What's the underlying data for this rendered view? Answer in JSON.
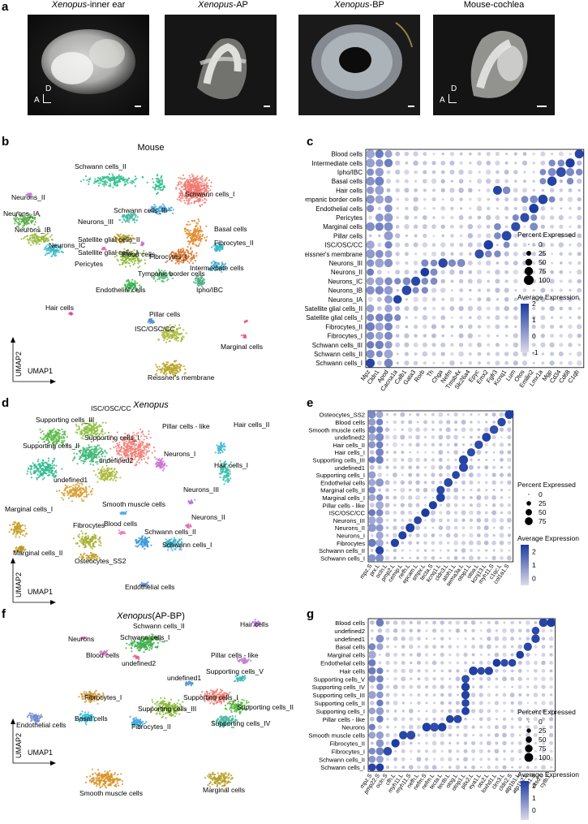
{
  "panels": {
    "a": "a",
    "b": "b",
    "c": "c",
    "d": "d",
    "e": "e",
    "f": "f",
    "g": "g"
  },
  "micrographs": [
    {
      "title_italic": "Xenopus",
      "title_rest": "-inner ear",
      "axis_d": "D",
      "axis_a": "A"
    },
    {
      "title_italic": "Xenopus",
      "title_rest": "-AP"
    },
    {
      "title_italic": "Xenopus",
      "title_rest": "-BP"
    },
    {
      "title_italic": "",
      "title_rest": "Mouse-cochlea",
      "axis_d": "D",
      "axis_a": "A"
    }
  ],
  "umap_axes": {
    "x": "UMAP1",
    "y": "UMAP2"
  },
  "umap_b": {
    "title": "Mouse",
    "clusters": [
      {
        "name": "Schwann cells_I",
        "color": "#f07a72"
      },
      {
        "name": "Schwann cells_II",
        "color": "#2bbf8a"
      },
      {
        "name": "Schwann cells_III",
        "color": "#4aa8d8"
      },
      {
        "name": "Neurons_II",
        "color": "#c77dd8"
      },
      {
        "name": "Neurons_III",
        "color": "#3fb9a0"
      },
      {
        "name": "Satellite glial cells_II",
        "color": "#b8a030"
      },
      {
        "name": "Satellite glial cells_I",
        "color": "#8cb830"
      },
      {
        "name": "Fibrocytes_II",
        "color": "#e08a2a"
      },
      {
        "name": "Fibrocytes_I",
        "color": "#d9742a"
      },
      {
        "name": "Basal cells",
        "color": "#36b8c8"
      },
      {
        "name": "Neurons_IA",
        "color": "#5ab04a"
      },
      {
        "name": "Neurons_IB",
        "color": "#9ab83a"
      },
      {
        "name": "Neurons_IC",
        "color": "#3ab8c8"
      },
      {
        "name": "Blood cells",
        "color": "#d070c8"
      },
      {
        "name": "Pericytes",
        "color": "#e070a8"
      },
      {
        "name": "Intermediate cells",
        "color": "#42b0d0"
      },
      {
        "name": "Tympanic border cells",
        "color": "#60c080"
      },
      {
        "name": "Endothelial cells",
        "color": "#3ab050"
      },
      {
        "name": "Ipho/IBC",
        "color": "#48b080"
      },
      {
        "name": "Hair cells",
        "color": "#e04a90"
      },
      {
        "name": "Pillar cells",
        "color": "#5a90d8"
      },
      {
        "name": "ISC/OSC/CC",
        "color": "#a8b838"
      },
      {
        "name": "Marginal cells",
        "color": "#e85878"
      },
      {
        "name": "Reissner's membrane",
        "color": "#b8a428"
      }
    ]
  },
  "umap_d": {
    "title_italic": "Xenopus",
    "clusters": [
      {
        "name": "ISC/OSC/CC",
        "color": "#8cc040"
      },
      {
        "name": "Supporting cells_III",
        "color": "#5ab848"
      },
      {
        "name": "Pillar cells - like",
        "color": "#f08078"
      },
      {
        "name": "Supporting cells_I",
        "color": "#40b878"
      },
      {
        "name": "Supporting cells_II",
        "color": "#30b890"
      },
      {
        "name": "Neurons_I",
        "color": "#d070d8"
      },
      {
        "name": "undefined2",
        "color": "#a8b838"
      },
      {
        "name": "Hair cells_II",
        "color": "#40b8d8"
      },
      {
        "name": "Hair cells_I",
        "color": "#38c0a8"
      },
      {
        "name": "undefined1",
        "color": "#d8a030"
      },
      {
        "name": "Neurons_III",
        "color": "#b878d8"
      },
      {
        "name": "Smooth muscle cells",
        "color": "#50a8e0"
      },
      {
        "name": "Neurons_II",
        "color": "#e070b0"
      },
      {
        "name": "Marginal cells_I",
        "color": "#c8a028"
      },
      {
        "name": "Marginal cells_II",
        "color": "#b89820"
      },
      {
        "name": "Fibrocytes",
        "color": "#a8b030"
      },
      {
        "name": "Blood cells",
        "color": "#e878c0"
      },
      {
        "name": "Schwann cells_II",
        "color": "#3898d8"
      },
      {
        "name": "Schwann cells_I",
        "color": "#40b0c8"
      },
      {
        "name": "Osteocytes_SS2",
        "color": "#c0a030"
      },
      {
        "name": "Endothelial cells",
        "color": "#5a88d0"
      }
    ]
  },
  "umap_f": {
    "title_italic": "Xenopus",
    "title_rest": "(AP-BP)",
    "clusters": [
      {
        "name": "Hair cells",
        "color": "#b878d8"
      },
      {
        "name": "Schwann cells_II",
        "color": "#40b050"
      },
      {
        "name": "Schwann cells_I",
        "color": "#50b048"
      },
      {
        "name": "Neurons",
        "color": "#e070b0"
      },
      {
        "name": "Blood cells",
        "color": "#d870c8"
      },
      {
        "name": "undefined2",
        "color": "#e06898"
      },
      {
        "name": "Pillar cells - like",
        "color": "#c080d8"
      },
      {
        "name": "Supporting cells_V",
        "color": "#38b8b8"
      },
      {
        "name": "undefined1",
        "color": "#5a98d8"
      },
      {
        "name": "Fibrocytes_I",
        "color": "#d09838"
      },
      {
        "name": "Supporting cells_I",
        "color": "#f07a72"
      },
      {
        "name": "Endothelial cells",
        "color": "#6a88d0"
      },
      {
        "name": "Supporting cells_III",
        "color": "#88b838"
      },
      {
        "name": "Supporting cells_II",
        "color": "#58b840"
      },
      {
        "name": "Basal cells",
        "color": "#38b8d8"
      },
      {
        "name": "Fibrocytes_II",
        "color": "#40a8e0"
      },
      {
        "name": "Supporting cells_IV",
        "color": "#48b8a0"
      },
      {
        "name": "Smooth muscle cells",
        "color": "#d8942a"
      },
      {
        "name": "Marginal cells",
        "color": "#b8a028"
      }
    ]
  },
  "chart_data": [
    {
      "type": "dot",
      "panel": "c",
      "rows": [
        "Blood cells",
        "Intermediate cells",
        "Ipho/IBC",
        "Basal cells",
        "Hair cells",
        "Tympanic border cells",
        "Endothelial cells",
        "Pericytes",
        "Marginal cells",
        "Pillar cells",
        "ISC/OSC/CC",
        "Reissner's membrane",
        "Neurons_III",
        "Neurons_II",
        "Neurons_IC",
        "Neurons_IB",
        "Neurons_IA",
        "Satellite glial cells_II",
        "Satellite glial cells_I",
        "Fibrocytes_II",
        "Fibrocytes_I",
        "Schwann cells_III",
        "Schwann cells_II",
        "Schwann cells_I"
      ],
      "genes": [
        "Mpz",
        "Cldn1",
        "Apod",
        "Cacna1a",
        "Calb1",
        "Gata3",
        "Rorb",
        "Th",
        "Chga",
        "Nefm",
        "Tmsb4x",
        "Slc26a4",
        "Epyc",
        "Emx2",
        "Fgfr3",
        "Kcnq1",
        "Lum",
        "Otos",
        "Emilin2",
        "Lmx1a",
        "Mgp",
        "Cd34",
        "Cd68",
        "C1qb"
      ],
      "diag_genes": [
        "",
        "",
        "Apod",
        "Cacna1a",
        "Calb1",
        "Gata3",
        "Rorb",
        "Th",
        "Chga",
        "Nefm",
        "Tmsb4x",
        "Slc26a4",
        "Epyc",
        "Emx2",
        "Fgfr3",
        "Kcnq1",
        "Lum",
        "Otos",
        "Emilin2",
        "Lmx1a",
        "Mgp",
        "Cd34",
        "Cd68",
        "C1qb"
      ],
      "legend_pct_title": "Percent Expressed",
      "legend_pct": [
        "0",
        "25",
        "50",
        "75",
        "100"
      ],
      "legend_avg_title": "Average Expression",
      "legend_avg": [
        "2",
        "1",
        "0",
        "-1"
      ],
      "avg_range": [
        -1,
        2
      ]
    },
    {
      "type": "dot",
      "panel": "e",
      "rows": [
        "Osteocytes_SS2",
        "Blood cells",
        "Smooth muscle cells",
        "undefined2",
        "Hair cells_II",
        "Hair cells_I",
        "Supporting cells_III",
        "undefined1",
        "Supporting cells_I",
        "Endothelial cells",
        "Marginal cells_II",
        "Marginal cells_I",
        "Pillar cells - like",
        "ISC/OSC/CC",
        "Neurons_III",
        "Neurons_II",
        "Neurons_I",
        "Fibrocytes",
        "Schwann cells_II",
        "Schwann cells_I"
      ],
      "genes": [
        "mpz.S",
        "prx.L",
        "ocln.L",
        "pmp2.L",
        "cemip.L",
        "nefh.L",
        "epcam.L",
        "smpx.L",
        "tecta.S",
        "kcnq1.L",
        "cldn3.L",
        "atoh1.L",
        "sema3a.L",
        "otop1.L",
        "otoa.L",
        "kcnj13.L",
        "myh11.S",
        "c1qc.L",
        "col1a1.S"
      ],
      "legend_pct_title": "Percent Expressed",
      "legend_pct": [
        "0",
        "25",
        "50",
        "75"
      ],
      "legend_avg_title": "Average Expression",
      "legend_avg": [
        "2",
        "1",
        "0"
      ],
      "avg_range": [
        -0.5,
        2.5
      ]
    },
    {
      "type": "dot",
      "panel": "g",
      "rows": [
        "Blood cells",
        "undefined2",
        "undefined1",
        "Basal cells",
        "Marginal cells",
        "Endothelial cells",
        "Hair cells",
        "Supporting cells_V",
        "Supporting cells_IV",
        "Supporting cells_III",
        "Supporting cells_II",
        "Supporting cells_I",
        "Pillar cells - like",
        "Neurons",
        "Smooth muscle cells",
        "Fibrocytes_II",
        "Fibrocytes_I",
        "Schwann cells_II",
        "Schwann cells_I"
      ],
      "genes": [
        "mpz.S",
        "pmp22.S",
        "ocln.S",
        "cfh.L",
        "myh11.L",
        "myh11.S",
        "nefh.L",
        "nefm.S",
        "nefm.L",
        "tecta.L",
        "tectb.L",
        "otog.L",
        "otop1.L",
        "pitx2.L",
        "eya1.L",
        "otx2.L",
        "loxhd1.L",
        "clrn3.L",
        "cldn2.S",
        "atp1b1.L",
        "atp1b2.L",
        "hba1.S",
        "ctsd.L",
        "cytb.L"
      ],
      "legend_pct_title": "Percent Expressed",
      "legend_pct": [
        "0",
        "25",
        "50",
        "75",
        "100"
      ],
      "legend_avg_title": "Average Expression",
      "legend_avg": [
        "2",
        "1",
        "0"
      ],
      "avg_range": [
        -0.8,
        2.4
      ]
    }
  ]
}
